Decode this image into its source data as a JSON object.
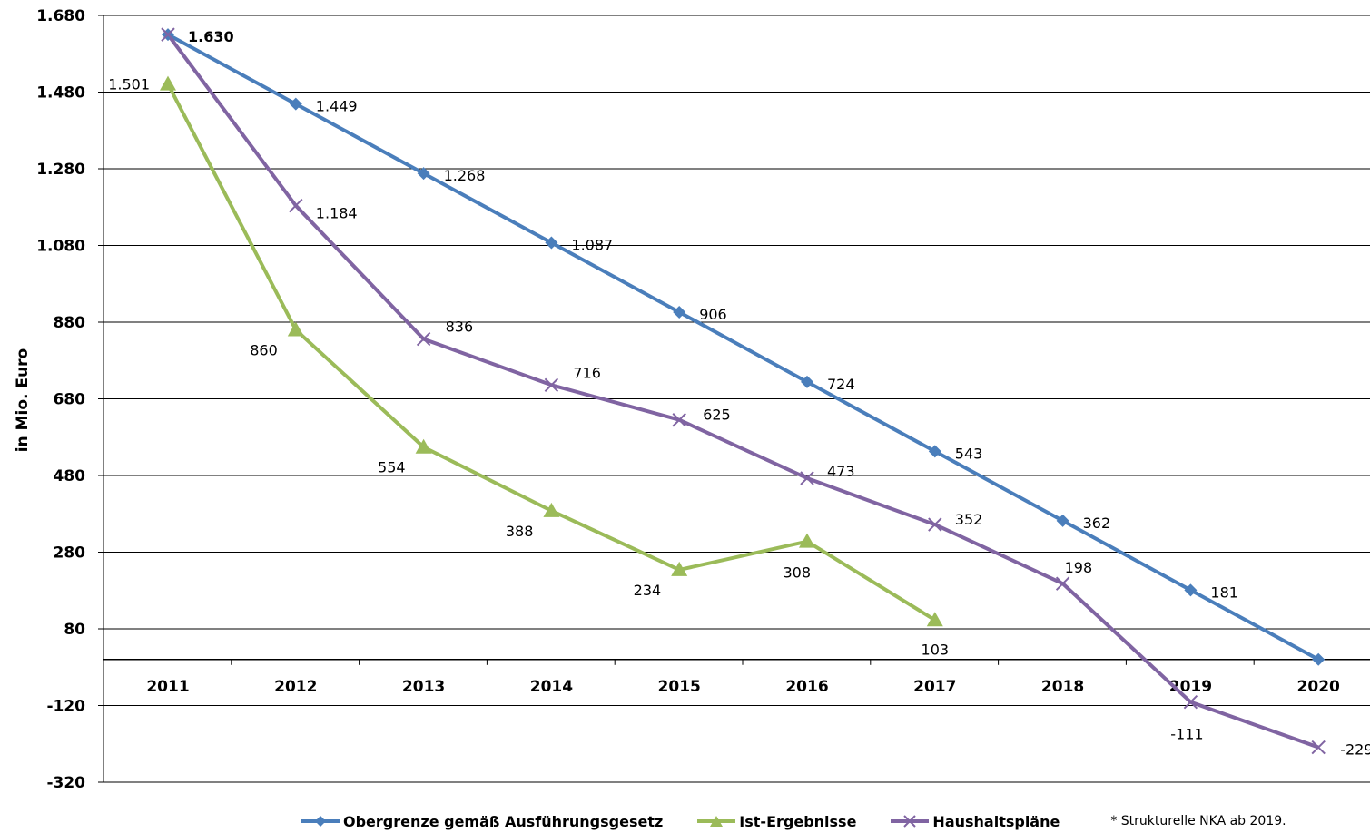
{
  "chart_data": {
    "type": "line",
    "ylabel": "in Mio. Euro",
    "xlabel": "",
    "ylim": [
      -320,
      1680
    ],
    "yticks": [
      1680,
      1480,
      1280,
      1080,
      880,
      680,
      480,
      280,
      80,
      -120,
      -320
    ],
    "ytick_labels": [
      "1.680",
      "1.480",
      "1.280",
      "1.080",
      "880",
      "680",
      "480",
      "280",
      "80",
      "-120",
      "-320"
    ],
    "categories": [
      "2011",
      "2012",
      "2013",
      "2014",
      "2015",
      "2016",
      "2017",
      "2018",
      "2019",
      "2020"
    ],
    "grid": true,
    "legend_position": "bottom",
    "series": [
      {
        "name": "Obergrenze gemäß Ausführungsgesetz",
        "color": "#4a7ebb",
        "marker": "diamond",
        "values": [
          1630,
          1449,
          1268,
          1087,
          906,
          724,
          543,
          362,
          181,
          0
        ],
        "labels": [
          "1.630",
          "1.449",
          "1.268",
          "1.087",
          "906",
          "724",
          "543",
          "362",
          "181",
          ""
        ]
      },
      {
        "name": "Ist-Ergebnisse",
        "color": "#9bbb59",
        "marker": "triangle",
        "values": [
          1501,
          860,
          554,
          388,
          234,
          308,
          103,
          null,
          null,
          null
        ],
        "labels": [
          "1.501",
          "860",
          "554",
          "388",
          "234",
          "308",
          "103",
          "",
          "",
          ""
        ]
      },
      {
        "name": "Haushaltspläne",
        "color": "#8064a2",
        "marker": "x",
        "values": [
          1630,
          1184,
          836,
          716,
          625,
          473,
          352,
          198,
          -111,
          -229
        ],
        "labels": [
          "",
          "1.184",
          "836",
          "716",
          "625",
          "473",
          "352",
          "198",
          "-111",
          "-229"
        ]
      }
    ],
    "note": "* Strukturelle NKA ab 2019."
  }
}
